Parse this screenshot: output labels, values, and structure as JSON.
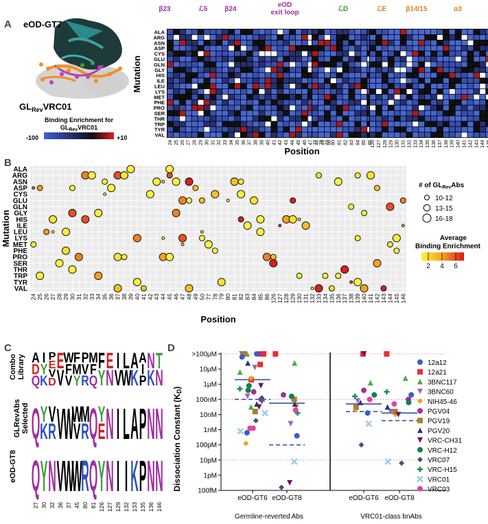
{
  "panel_letters": [
    "A",
    "B",
    "C",
    "D"
  ],
  "amino_acids": [
    "ALA",
    "ARG",
    "ASN",
    "ASP",
    "CYS",
    "GLU",
    "GLN",
    "GLY",
    "HIS",
    "ILE",
    "LEU",
    "LYS",
    "MET",
    "PHE",
    "PRO",
    "SER",
    "THR",
    "TRP",
    "TYR",
    "VAL"
  ],
  "panel_a": {
    "structure_label": "eOD-GT7",
    "antibody_label_main": "GL",
    "antibody_label_sub": "Rev",
    "antibody_label_rest": "VRC01",
    "colorbar_title_line1": "Binding Enrichment for",
    "colorbar_title_line2_main": "GL",
    "colorbar_title_line2_sub": "Rev",
    "colorbar_title_line2_rest": "VRC01",
    "colorbar_min": "-100",
    "colorbar_max": "+10",
    "y_axis_label": "Mutation",
    "x_axis_label": "Position",
    "region_labels": [
      {
        "text": "β23",
        "color": "#a0309a"
      },
      {
        "text": "ℒ5",
        "color": "#a0309a"
      },
      {
        "text": "β24",
        "color": "#a0309a"
      },
      {
        "text": "eOD",
        "color": "#a0309a"
      },
      {
        "text": "exit loop",
        "color": "#a0309a"
      },
      {
        "text": "ℒD",
        "color": "#3a9a2a"
      },
      {
        "text": "ℒE",
        "color": "#e08020"
      },
      {
        "text": "β14/15",
        "color": "#e08020"
      },
      {
        "text": "α3",
        "color": "#e08020"
      }
    ],
    "positions_block1": [
      "24",
      "25",
      "26",
      "27",
      "28",
      "29",
      "30",
      "31",
      "32",
      "33",
      "34",
      "35",
      "36",
      "37",
      "38",
      "39",
      "40",
      "41",
      "42",
      "43",
      "44",
      "45",
      "46",
      "47",
      "48",
      "49",
      "50"
    ],
    "positions_block2": [
      "77",
      "78",
      "79",
      "80",
      "81",
      "82",
      "83",
      "84",
      "85",
      "86"
    ],
    "positions_block3": [
      "126",
      "127",
      "128",
      "129",
      "130",
      "131",
      "132",
      "133",
      "134",
      "135",
      "136",
      "137",
      "138",
      "139",
      "140",
      "141",
      "142",
      "143",
      "144",
      "145",
      "146"
    ]
  },
  "panel_b": {
    "y_axis_label": "Mutation",
    "x_axis_label": "Position",
    "positions": [
      "24",
      "25",
      "26",
      "27",
      "28",
      "29",
      "30",
      "31",
      "32",
      "33",
      "34",
      "35",
      "36",
      "37",
      "38",
      "39",
      "40",
      "41",
      "42",
      "43",
      "44",
      "45",
      "46",
      "47",
      "48",
      "49",
      "50",
      "77",
      "78",
      "79",
      "80",
      "81",
      "82",
      "83",
      "84",
      "85",
      "86",
      "126",
      "127",
      "128",
      "129",
      "130",
      "131",
      "132",
      "133",
      "134",
      "135",
      "136",
      "137",
      "138",
      "139",
      "140",
      "141",
      "142",
      "143",
      "144",
      "145",
      "146"
    ],
    "size_legend_title_main": "# of GL",
    "size_legend_title_sub": "Rev",
    "size_legend_title_rest": "Abs",
    "size_legend_items": [
      "10-12",
      "13-15",
      "16-18"
    ],
    "color_legend_title_line1": "Average",
    "color_legend_title_line2": "Binding Enrichment",
    "color_legend_ticks": [
      "2",
      "4",
      "6"
    ]
  },
  "panel_c": {
    "row_labels": [
      {
        "line1": "Combo",
        "line2": "Library"
      },
      {
        "line1": "GLRevAbs",
        "line2": "Selected"
      },
      {
        "line1": "eOD-GT8",
        "line2": ""
      }
    ],
    "positions": [
      "27",
      "30",
      "32",
      "36",
      "37",
      "45",
      "80",
      "81",
      "126",
      "127",
      "129",
      "132",
      "133",
      "135",
      "136",
      "146"
    ]
  },
  "panel_d": {
    "y_axis_label": "Dissociation Constant (K",
    "y_axis_label_sub": "D",
    "y_axis_label_end": ")",
    "y_ticks": [
      ">100μM",
      "10μM",
      "1μM",
      "100nM",
      "10nM",
      "1nM",
      "100pM",
      "10pM",
      "1pM",
      "100fM"
    ],
    "x_ticks": [
      "eOD-GT6",
      "eOD-GT8",
      "eOD-GT6",
      "eOD-GT8"
    ],
    "group_labels": [
      "Germline-reverted Abs",
      "VRC01-class bnAbs"
    ],
    "legend": [
      {
        "name": "12a12",
        "color": "#3a5cc8",
        "shape": "circle"
      },
      {
        "name": "12a21",
        "color": "#e83030",
        "shape": "square"
      },
      {
        "name": "3BNC117",
        "color": "#40b040",
        "shape": "triangle-up"
      },
      {
        "name": "3BNC60",
        "color": "#a060c0",
        "shape": "triangle-down"
      },
      {
        "name": "NIH45-46",
        "color": "#f0a020",
        "shape": "diamond"
      },
      {
        "name": "PGV04",
        "color": "#a0309a",
        "shape": "circle"
      },
      {
        "name": "PGV19",
        "color": "#a88030",
        "shape": "square"
      },
      {
        "name": "PGV20",
        "color": "#203880",
        "shape": "triangle-up"
      },
      {
        "name": "VRC-CH31",
        "color": "#701060",
        "shape": "triangle-down"
      },
      {
        "name": "VRC-H12",
        "color": "#108050",
        "shape": "circle"
      },
      {
        "name": "VRC07",
        "color": "#405080",
        "shape": "diamond"
      },
      {
        "name": "VRC-H15",
        "color": "#109060",
        "shape": "cross"
      },
      {
        "name": "VRC01",
        "color": "#a0c8e8",
        "shape": "x"
      },
      {
        "name": "VRC03",
        "color": "#e840a0",
        "shape": "circle"
      }
    ]
  },
  "colors": {
    "heat_low": "#2030a0",
    "heat_mid": "#101010",
    "heat_high": "#d82020",
    "region_purple": "#a0309a",
    "region_green": "#3a9a2a",
    "region_orange": "#e08020",
    "bubble_low": "#f8e020",
    "bubble_high": "#e02020",
    "grid_bg": "#ebebeb"
  }
}
